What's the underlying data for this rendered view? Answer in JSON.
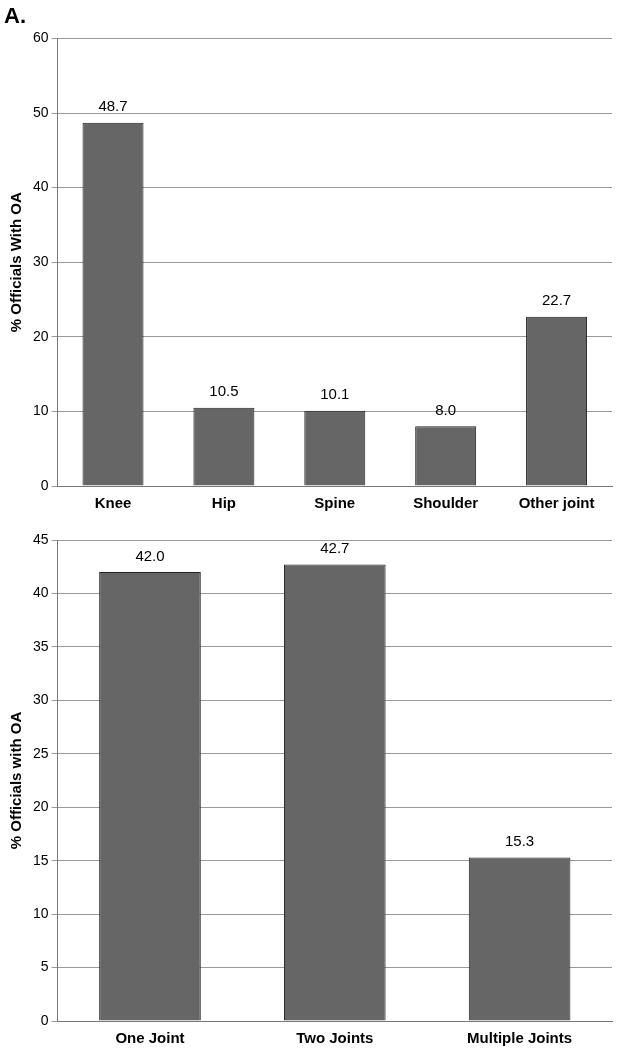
{
  "chart_data": [
    {
      "type": "bar",
      "title": "A.",
      "ylabel": "% Officials With OA",
      "categories": [
        "Knee",
        "Hip",
        "Spine",
        "Shoulder",
        "Other joint"
      ],
      "values": [
        48.7,
        10.5,
        10.1,
        8.0,
        22.7
      ],
      "value_labels": [
        "48.7",
        "10.5",
        "10.1",
        "8.0",
        "22.7"
      ],
      "color": "#666666",
      "ylim": [
        0,
        60
      ],
      "yticks": [
        0,
        10,
        20,
        30,
        40,
        50,
        60
      ],
      "grid": "y",
      "legend": false
    },
    {
      "type": "bar",
      "ylabel": "% Officials with OA",
      "categories": [
        "One Joint",
        "Two Joints",
        "Multiple Joints"
      ],
      "values": [
        42.0,
        42.7,
        15.3
      ],
      "value_labels": [
        "42.0",
        "42.7",
        "15.3"
      ],
      "color": "#666666",
      "ylim": [
        0,
        45
      ],
      "yticks": [
        0,
        5,
        10,
        15,
        20,
        25,
        30,
        35,
        40,
        45
      ],
      "grid": "y",
      "legend": false
    }
  ]
}
